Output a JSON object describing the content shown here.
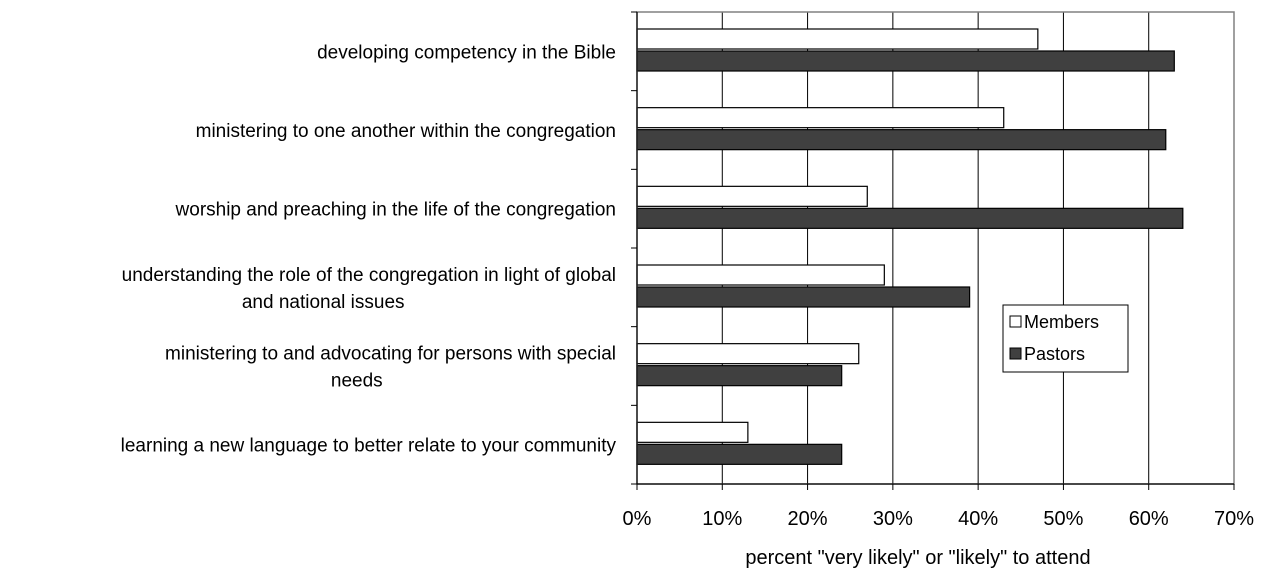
{
  "chart_data": {
    "type": "bar",
    "orientation": "horizontal",
    "categories": [
      "developing competency in the Bible",
      "ministering to one another within the congregation",
      "worship and preaching in the life of the congregation",
      "understanding the role of the congregation in light of global and national issues",
      "ministering to and advocating for persons with special needs",
      "learning a new language to better relate to your community"
    ],
    "category_lines": [
      [
        "developing competency in the Bible"
      ],
      [
        "ministering to one another within the congregation"
      ],
      [
        "worship and preaching in the life of the congregation"
      ],
      [
        "understanding the role of the congregation in light of global",
        "and national issues"
      ],
      [
        "ministering to and advocating for persons with special",
        "needs"
      ],
      [
        "learning a new language to better relate to your community"
      ]
    ],
    "series": [
      {
        "name": "Members",
        "color": "#ffffff",
        "values": [
          47,
          43,
          27,
          29,
          26,
          13
        ]
      },
      {
        "name": "Pastors",
        "color": "#404040",
        "values": [
          63,
          62,
          64,
          39,
          24,
          24
        ]
      }
    ],
    "xlim": [
      0,
      70
    ],
    "xticks": [
      0,
      10,
      20,
      30,
      40,
      50,
      60,
      70
    ],
    "xtick_labels": [
      "0%",
      "10%",
      "20%",
      "30%",
      "40%",
      "50%",
      "60%",
      "70%"
    ],
    "xlabel": "percent \"very likely\" or \"likely\" to attend",
    "grid": "vertical",
    "legend": {
      "position": "right",
      "entries": [
        "Members",
        "Pastors"
      ]
    }
  }
}
